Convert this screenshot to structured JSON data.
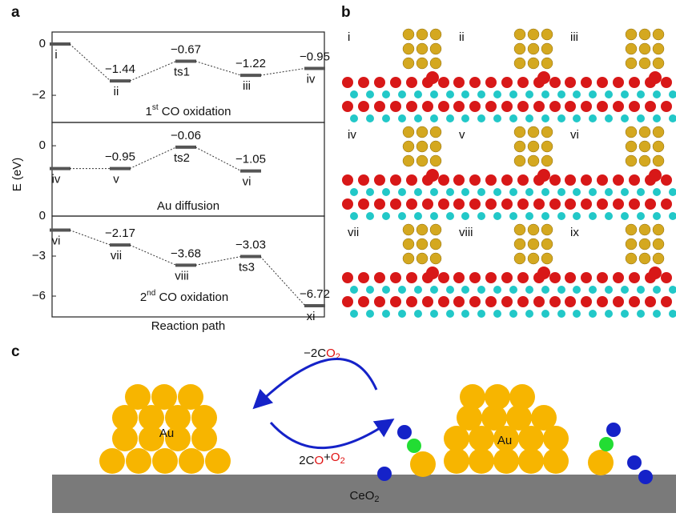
{
  "chart_data": [
    {
      "type": "line",
      "title": {
        "pre": "1",
        "sup": "st",
        "post": " CO oxidation"
      },
      "categories": [
        "i",
        "ii",
        "ts1",
        "iii",
        "iv"
      ],
      "values": [
        0,
        -1.44,
        -0.67,
        -1.22,
        -0.95
      ],
      "value_labels": [
        null,
        "−1.44",
        "−0.67",
        "−1.22",
        "−0.95"
      ],
      "color": "#555555",
      "ylim": [
        -3.06,
        0.47
      ],
      "yticks": [
        0,
        {
          "value": -2,
          "label": "−2"
        }
      ]
    },
    {
      "type": "line",
      "title": {
        "pre": "Au diffusion",
        "sup": null,
        "post": null
      },
      "categories": [
        "iv",
        "v",
        "ts2",
        "vi"
      ],
      "values": [
        -0.95,
        -0.95,
        -0.06,
        -1.05
      ],
      "value_labels": [
        null,
        "−0.95",
        "−0.06",
        "−1.05"
      ],
      "color": "#555555",
      "ylim": [
        -2.93,
        0.97
      ],
      "yticks": [
        0
      ]
    },
    {
      "type": "line",
      "title": {
        "pre": "2",
        "sup": "nd",
        "post": " CO oxidation"
      },
      "categories": [
        "vi",
        "vii",
        "viii",
        "ts3",
        "xi"
      ],
      "values": [
        -1.05,
        -2.17,
        -3.68,
        -3.03,
        -6.72
      ],
      "value_labels": [
        null,
        "−2.17",
        "−3.68",
        "−3.03",
        "−6.72"
      ],
      "color": "#555555",
      "ylim": [
        -7.56,
        0
      ],
      "yticks": [
        0,
        {
          "value": -3,
          "label": "−3"
        },
        {
          "value": -6,
          "label": "−6"
        }
      ]
    }
  ],
  "panel_a": {
    "label": "a",
    "ylabel": "E (eV)",
    "xlabel": "Reaction path"
  },
  "panel_b": {
    "label": "b",
    "frames": [
      "i",
      "ii",
      "iii",
      "iv",
      "v",
      "vi",
      "vii",
      "viii",
      "ix"
    ]
  },
  "panel_c": {
    "label": "c",
    "release": [
      "−2C",
      "O",
      "2"
    ],
    "adsorb": [
      "2C",
      "O",
      "+",
      "O",
      "2"
    ],
    "au_labels": [
      "Au",
      "Au"
    ],
    "substrate": [
      "CeO",
      "2"
    ]
  }
}
